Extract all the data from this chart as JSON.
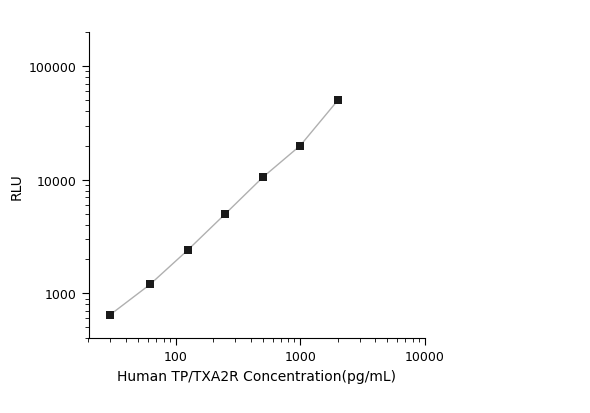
{
  "x": [
    30,
    62.5,
    125,
    250,
    500,
    1000,
    2000
  ],
  "y": [
    650,
    1200,
    2400,
    5000,
    10500,
    20000,
    50000
  ],
  "xlabel": "Human TP/TXA2R Concentration(pg/mL)",
  "ylabel": "RLU",
  "xlim": [
    20,
    10000
  ],
  "ylim": [
    400,
    200000
  ],
  "xticks": [
    100,
    1000,
    10000
  ],
  "yticks": [
    1000,
    10000,
    100000
  ],
  "marker_color": "#1a1a1a",
  "line_color": "#b0b0b0",
  "background_color": "#ffffff",
  "marker": "s",
  "marker_size": 6,
  "line_width": 1.0,
  "xlabel_fontsize": 10,
  "ylabel_fontsize": 10,
  "tick_fontsize": 9
}
